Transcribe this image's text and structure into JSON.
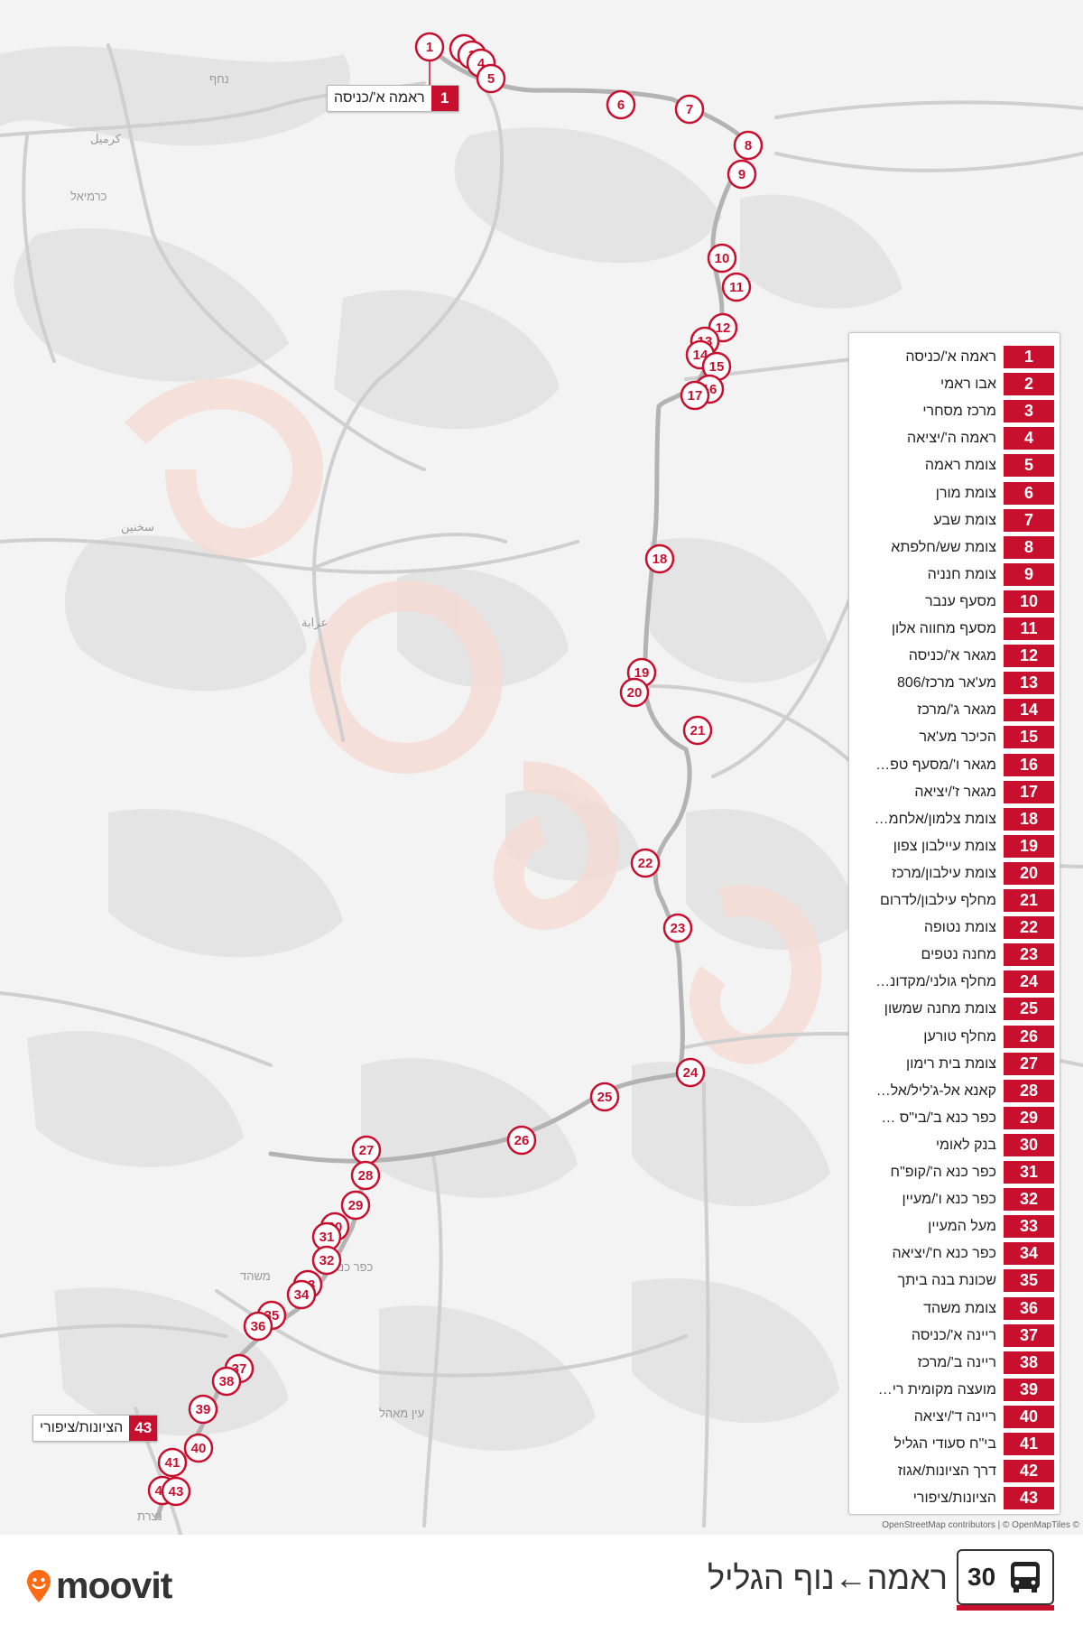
{
  "colors": {
    "accent": "#c8102e",
    "route": "#bdbdbd",
    "map_bg": "#f3f3f3",
    "land": "#e6e6e6"
  },
  "route": {
    "number": "30",
    "title": "ראמה←נוף הגליל",
    "icon": "bus-icon"
  },
  "brand": {
    "name": "moovit",
    "icon": "moovit-pin-icon"
  },
  "attribution": "OpenStreetMap contributors | © OpenMapTiles ©",
  "map_labels": {
    "nahf": "נחף",
    "karmiel_ar": "كرميل",
    "karmiel": "כרמיאל",
    "sakhnin": "سخنين",
    "arraba": "عرابة",
    "kafr_kanna": "כפר כנא",
    "mashhad": "משהד",
    "ein_mahil": "עין מאהל",
    "nazareth": "נצרת"
  },
  "callouts": {
    "start": {
      "number": "1",
      "name": "ראמה א'/כניסה"
    },
    "end": {
      "number": "43",
      "name": "הציונות/ציפורי"
    }
  },
  "stops": [
    {
      "n": "1",
      "name": "ראמה א'/כניסה"
    },
    {
      "n": "2",
      "name": "אבו ראמי"
    },
    {
      "n": "3",
      "name": "מרכז מסחרי"
    },
    {
      "n": "4",
      "name": "ראמה ה'/יציאה"
    },
    {
      "n": "5",
      "name": "צומת ראמה"
    },
    {
      "n": "6",
      "name": "צומת מורן"
    },
    {
      "n": "7",
      "name": "צומת שבע"
    },
    {
      "n": "8",
      "name": "צומת שש/חלפתא"
    },
    {
      "n": "9",
      "name": "צומת חנניה"
    },
    {
      "n": "10",
      "name": "מסעף ענבר"
    },
    {
      "n": "11",
      "name": "מסעף מחווה אלון"
    },
    {
      "n": "12",
      "name": "מגאר א'/כניסה"
    },
    {
      "n": "13",
      "name": "מע'אר מרכז/806"
    },
    {
      "n": "14",
      "name": "מגאר ג'/מרכז"
    },
    {
      "n": "15",
      "name": "הכיכר מע'אר"
    },
    {
      "n": "16",
      "name": "מגאר ו'/מסעף טפ…"
    },
    {
      "n": "17",
      "name": "מגאר ז'/יציאה"
    },
    {
      "n": "18",
      "name": "צומת צלמון/אלחמ…"
    },
    {
      "n": "19",
      "name": "צומת עיילבון צפון"
    },
    {
      "n": "20",
      "name": "צומת עילבון/מרכז"
    },
    {
      "n": "21",
      "name": "מחלף עילבון/לדרום"
    },
    {
      "n": "22",
      "name": "צומת נטופה"
    },
    {
      "n": "23",
      "name": "מחנה נטפים"
    },
    {
      "n": "24",
      "name": "מחלף גולני/מקדונ…"
    },
    {
      "n": "25",
      "name": "צומת מחנה שמשון"
    },
    {
      "n": "26",
      "name": "מחלף טורען"
    },
    {
      "n": "27",
      "name": "צומת בית רימון"
    },
    {
      "n": "28",
      "name": "קאנא אל-ג'ליל/אל…"
    },
    {
      "n": "29",
      "name": "כפר כנא ב'/בי\"ס …"
    },
    {
      "n": "30",
      "name": "בנק לאומי"
    },
    {
      "n": "31",
      "name": "כפר כנא ה'/קופ\"ח"
    },
    {
      "n": "32",
      "name": "כפר כנא ו'/מעיין"
    },
    {
      "n": "33",
      "name": "מעל המעיין"
    },
    {
      "n": "34",
      "name": "כפר כנא ח'/יציאה"
    },
    {
      "n": "35",
      "name": "שכונת בנה ביתך"
    },
    {
      "n": "36",
      "name": "צומת משהד"
    },
    {
      "n": "37",
      "name": "ריינה א'/כניסה"
    },
    {
      "n": "38",
      "name": "ריינה ב'/מרכז"
    },
    {
      "n": "39",
      "name": "מועצה מקומית רי…"
    },
    {
      "n": "40",
      "name": "ריינה ד'/יציאה"
    },
    {
      "n": "41",
      "name": "בי\"ח סעודי הגליל"
    },
    {
      "n": "42",
      "name": "דרך הציונות/אגוז"
    },
    {
      "n": "43",
      "name": "הציונות/ציפורי"
    }
  ]
}
